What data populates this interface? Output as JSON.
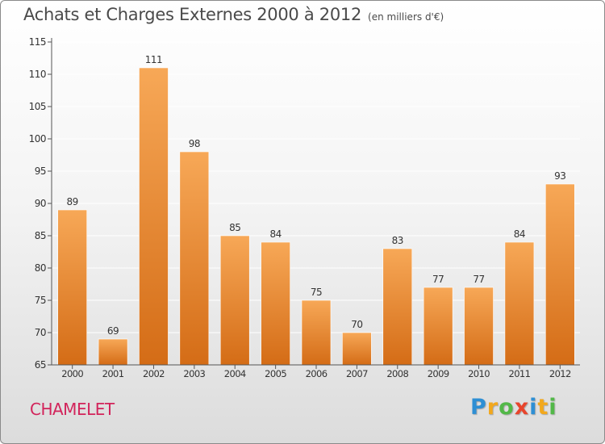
{
  "header": {
    "title": "Achats et Charges Externes 2000 à 2012",
    "unit": "(en milliers d'€)"
  },
  "footer": {
    "place": "CHAMELET",
    "logo_letters": [
      {
        "ch": "P",
        "color": "#2e8fd4"
      },
      {
        "ch": "r",
        "color": "#f2a81d"
      },
      {
        "ch": "o",
        "color": "#52b848"
      },
      {
        "ch": "x",
        "color": "#e8452c"
      },
      {
        "ch": "i",
        "color": "#2e8fd4"
      },
      {
        "ch": "t",
        "color": "#f2a81d"
      },
      {
        "ch": "i",
        "color": "#52b848"
      }
    ]
  },
  "colors": {
    "bar_top": "#f7a857",
    "bar_bottom": "#d46c16",
    "axis_text": "#333333",
    "grid": "#ffffff"
  },
  "chart_data": {
    "type": "bar",
    "title": "Achats et Charges Externes 2000 à 2012",
    "subtitle": "(en milliers d'€)",
    "xlabel": "",
    "ylabel": "",
    "categories": [
      "2000",
      "2001",
      "2002",
      "2003",
      "2004",
      "2005",
      "2006",
      "2007",
      "2008",
      "2009",
      "2010",
      "2011",
      "2012"
    ],
    "values": [
      89,
      69,
      111,
      98,
      85,
      84,
      75,
      70,
      83,
      77,
      77,
      84,
      93
    ],
    "ylim": [
      65,
      115
    ],
    "yticks": [
      65,
      70,
      75,
      80,
      85,
      90,
      95,
      100,
      105,
      110,
      115
    ],
    "grid": true,
    "data_labels": true
  }
}
